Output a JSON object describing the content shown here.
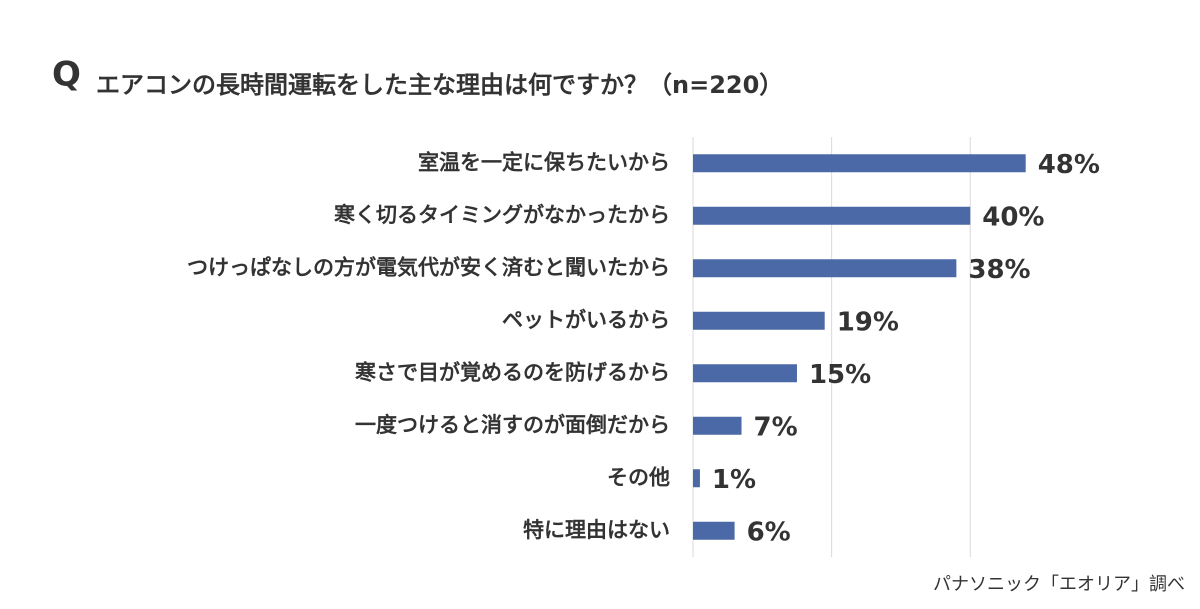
{
  "chart_data": {
    "type": "bar",
    "orientation": "horizontal",
    "question_mark": "Q",
    "title": "エアコンの長時間運転をした主な理由は何ですか？（n=220）",
    "categories": [
      "室温を一定に保ちたいから",
      "寒く切るタイミングがなかったから",
      "つけっぱなしの方が電気代が安く済むと聞いたから",
      "ペットがいるから",
      "寒さで目が覚めるのを防げるから",
      "一度つけると消すのが面倒だから",
      "その他",
      "特に理由はない"
    ],
    "values": [
      48,
      40,
      38,
      19,
      15,
      7,
      1,
      6
    ],
    "value_labels": [
      "48%",
      "40%",
      "38%",
      "19%",
      "15%",
      "7%",
      "1%",
      "6%"
    ],
    "color": "#4a69a6",
    "xlim": [
      0,
      58
    ],
    "xticks": [
      0,
      20,
      40
    ],
    "grid": true,
    "tick_labels": false,
    "source": "パナソニック「エオリア」調べ"
  }
}
